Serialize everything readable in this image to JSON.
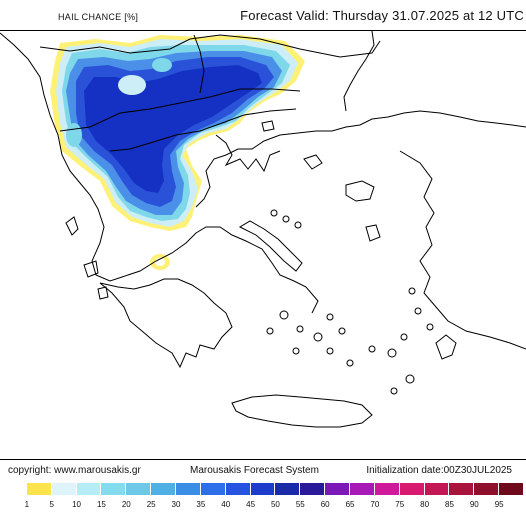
{
  "header": {
    "title": "HAIL CHANCE [%]",
    "valid": "Forecast Valid:  Thursday 31.07.2025 at 12 UTC"
  },
  "map": {
    "land_color": "#ffffff",
    "border_color": "#000000",
    "hail_colors": {
      "light_yellow": "#fff176",
      "pale_cyan": "#cdeef6",
      "cyan": "#7fd8ea",
      "light_blue": "#4a90e8",
      "blue": "#2a52d8",
      "deep_blue": "#1531c4"
    }
  },
  "footer": {
    "copyright": "copyright: www.marousakis.gr",
    "system": "Marousakis Forecast System",
    "init": "Initialization date:00Z30JUL2025"
  },
  "legend": {
    "colors": [
      "#ffffff",
      "#ffe34d",
      "#ddf4fa",
      "#b6ecf6",
      "#82dcee",
      "#6ec8e8",
      "#4fb0e6",
      "#3b8ee6",
      "#2e6ee8",
      "#2654e0",
      "#1d3ccc",
      "#1a2aa8",
      "#2a1a9a",
      "#7a19b8",
      "#a81ab8",
      "#d01a9c",
      "#d81a70",
      "#c41856",
      "#a8143e",
      "#8e102c",
      "#6e0a1c"
    ],
    "labels": [
      "1",
      "5",
      "10",
      "15",
      "20",
      "25",
      "30",
      "35",
      "40",
      "45",
      "50",
      "55",
      "60",
      "65",
      "70",
      "75",
      "80",
      "85",
      "90",
      "95"
    ]
  }
}
